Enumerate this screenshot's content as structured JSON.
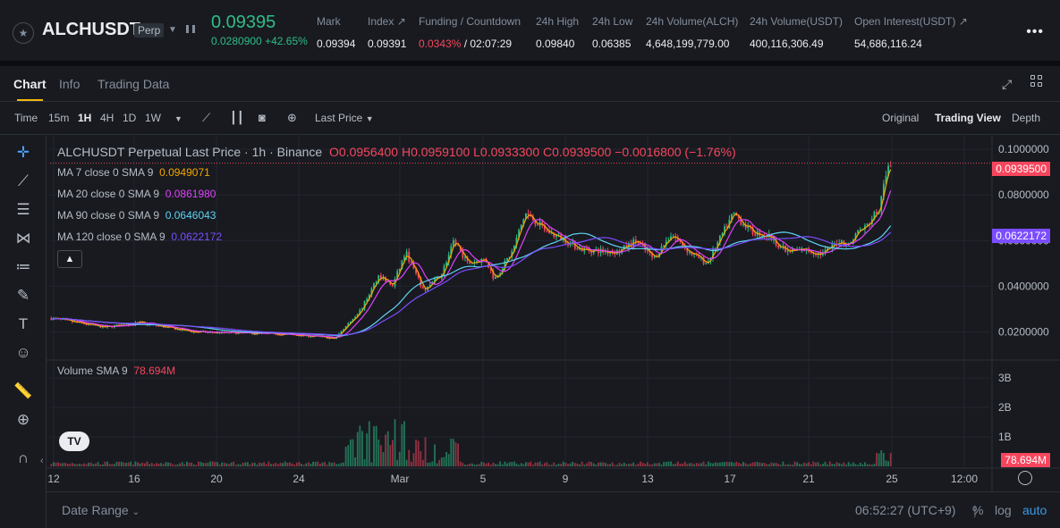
{
  "ticker": {
    "symbol": "ALCHUSDT",
    "badge": "Perp",
    "last_price": "0.09395",
    "change_abs": "0.0280900",
    "change_pct": "+42.65%",
    "stats": [
      {
        "label": "Mark",
        "value": "0.09394"
      },
      {
        "label": "Index ↗",
        "value": "0.09391"
      },
      {
        "label": "Funding / Countdown",
        "value_red": "0.0343%",
        "value": " / 02:07:29"
      },
      {
        "label": "24h High",
        "value": "0.09840"
      },
      {
        "label": "24h Low",
        "value": "0.06385"
      },
      {
        "label": "24h Volume(ALCH)",
        "value": "4,648,199,779.00"
      },
      {
        "label": "24h Volume(USDT)",
        "value": "400,116,306.49"
      },
      {
        "label": "Open Interest(USDT) ↗",
        "value": "54,686,116.24"
      }
    ]
  },
  "tabs": [
    "Chart",
    "Info",
    "Trading Data"
  ],
  "toolbar": {
    "time_label": "Time",
    "intervals": [
      "15m",
      "1H",
      "4H",
      "1D",
      "1W"
    ],
    "active_interval": "1H",
    "price_type": "Last Price",
    "views": [
      "Original",
      "Trading View",
      "Depth"
    ],
    "active_view": "Trading View"
  },
  "legend": {
    "title": "ALCHUSDT Perpetual Last Price · 1h · Binance",
    "ohlc": "O0.0956400 H0.0959100 L0.0933300 C0.0939500 −0.0016800 (−1.76%)",
    "ma": [
      {
        "label": "MA 7 close 0 SMA 9",
        "value": "0.0949071",
        "color": "#f7a600"
      },
      {
        "label": "MA 20 close 0 SMA 9",
        "value": "0.0861980",
        "color": "#e040fb"
      },
      {
        "label": "MA 90 close 0 SMA 9",
        "value": "0.0646043",
        "color": "#5fd3f3"
      },
      {
        "label": "MA 120 close 0 SMA 9",
        "value": "0.0622172",
        "color": "#7c4dff"
      }
    ],
    "volume_label": "Volume SMA 9",
    "volume_value": "78.694M"
  },
  "price_axis": {
    "ticks": [
      "0.1000000",
      "0.0800000",
      "0.0600000",
      "0.0400000",
      "0.0200000"
    ],
    "last_tag": "0.0939500",
    "ma_tag": "0.0622172",
    "last_color": "#f6465d",
    "ma_color": "#7c4dff"
  },
  "volume_axis": {
    "ticks": [
      "3B",
      "2B",
      "1B"
    ],
    "tag": "78.694M"
  },
  "time_axis": [
    "12",
    "16",
    "20",
    "24",
    "Mar",
    "5",
    "9",
    "13",
    "17",
    "21",
    "25",
    "12:00"
  ],
  "footer": {
    "date_range": "Date Range",
    "clock": "06:52:27 (UTC+9)",
    "pct": "%",
    "log": "log",
    "auto": "auto"
  },
  "chart_data": {
    "type": "line",
    "title": "ALCHUSDT Perpetual Last Price · 1h · Binance",
    "x": [
      "12",
      "16",
      "20",
      "24",
      "Mar",
      "5",
      "9",
      "13",
      "17",
      "21",
      "25"
    ],
    "ylim": [
      0.01,
      0.102
    ],
    "series": [
      {
        "name": "Last Price",
        "values": [
          0.026,
          0.021,
          0.019,
          0.017,
          0.045,
          0.052,
          0.057,
          0.054,
          0.062,
          0.057,
          0.094
        ]
      },
      {
        "name": "MA 120 close 0 SMA 9",
        "values": [
          0.027,
          0.022,
          0.019,
          0.017,
          0.037,
          0.05,
          0.058,
          0.058,
          0.058,
          0.06,
          0.062
        ]
      }
    ],
    "volume": {
      "name": "Volume SMA 9",
      "ylim": [
        0,
        3.4
      ],
      "unit": "B"
    }
  }
}
